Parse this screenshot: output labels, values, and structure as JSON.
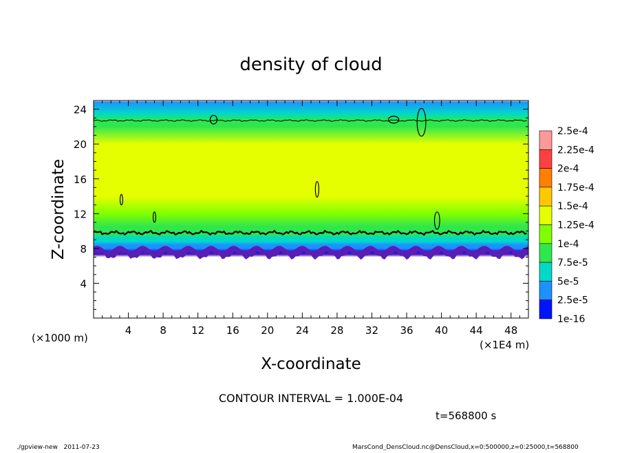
{
  "chart_data": {
    "type": "heatmap",
    "title": "density of cloud",
    "xlabel": "X-coordinate",
    "ylabel": "Z-coordinate",
    "x_unit_label": "(×1E4 m)",
    "y_unit_label": "(×1000 m)",
    "xlim": [
      0,
      50
    ],
    "ylim": [
      0,
      25
    ],
    "x_ticks": [
      "4",
      "8",
      "12",
      "16",
      "20",
      "24",
      "28",
      "32",
      "36",
      "40",
      "44",
      "48"
    ],
    "y_ticks": [
      "4",
      "8",
      "12",
      "16",
      "20",
      "24"
    ],
    "grid": false,
    "contour_interval_text": "CONTOUR INTERVAL = 1.000E-04",
    "contour_level": 0.0001,
    "contours": [
      {
        "level": 0.0001,
        "z": 22.7,
        "note": "upper"
      },
      {
        "level": 0.0001,
        "z": 9.8,
        "note": "lower"
      }
    ],
    "profile_z": [
      7.0,
      7.3,
      7.6,
      8.0,
      8.4,
      8.8,
      9.2,
      9.7,
      10.5,
      12.0,
      14.0,
      16.0,
      18.0,
      20.0,
      22.0,
      22.7,
      23.5,
      24.9
    ],
    "profile_density": [
      0.0,
      1e-05,
      2.5e-05,
      5e-05,
      6e-05,
      7.5e-05,
      9e-05,
      0.0001,
      0.00012,
      0.00014,
      0.00015,
      0.00016,
      0.00016,
      0.00015,
      0.00012,
      0.0001,
      8e-05,
      7e-05
    ],
    "colorbar": {
      "labels": [
        "2.5e-4",
        "2.25e-4",
        "2e-4",
        "1.75e-4",
        "1.5e-4",
        "1.25e-4",
        "1e-4",
        "7.5e-5",
        "5e-5",
        "2.5e-5",
        "1e-16"
      ],
      "values": [
        0.00025,
        0.000225,
        0.0002,
        0.000175,
        0.00015,
        0.000125,
        0.0001,
        7.5e-05,
        5e-05,
        2.5e-05,
        1e-16
      ],
      "colors": [
        "#ff9999",
        "#ff4040",
        "#ff7f00",
        "#ffc800",
        "#e6ff00",
        "#80ff00",
        "#30e64d",
        "#00d9c8",
        "#1e90ff",
        "#0014ff",
        "#5a1eb4"
      ]
    }
  },
  "time_label": "t=568800 s",
  "footer_left": "./gpview-new   2011-07-23",
  "footer_right": "MarsCond_DensCloud.nc@DensCloud,x=0:500000,z=0:25000,t=568800"
}
